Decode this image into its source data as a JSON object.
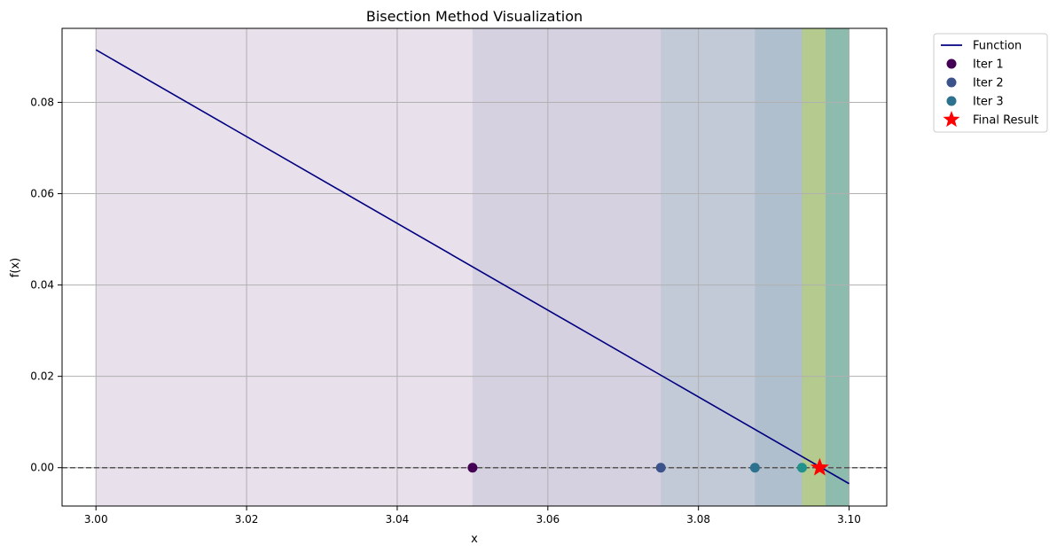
{
  "chart_data": {
    "type": "line",
    "title": "Bisection Method Visualization",
    "xlabel": "x",
    "ylabel": "f(x)",
    "xlim": [
      2.9955,
      3.105
    ],
    "ylim": [
      -0.0084,
      0.0962
    ],
    "grid": true,
    "legend_position": "outside-top-right",
    "x_ticks": [
      3.0,
      3.02,
      3.04,
      3.06,
      3.08,
      3.1
    ],
    "x_tick_labels": [
      "3.00",
      "3.02",
      "3.04",
      "3.06",
      "3.08",
      "3.10"
    ],
    "y_ticks": [
      0.0,
      0.02,
      0.04,
      0.06,
      0.08
    ],
    "y_tick_labels": [
      "0.00",
      "0.02",
      "0.04",
      "0.06",
      "0.08"
    ],
    "function": {
      "name": "Function",
      "color": "#000080",
      "x": [
        3.0,
        3.1
      ],
      "y": [
        0.0915,
        -0.0035
      ]
    },
    "zero_line": {
      "y": 0,
      "color": "#555555",
      "style": "dashed"
    },
    "intervals": [
      {
        "a": 3.0,
        "b": 3.1,
        "color": "#440154",
        "opacity": 0.12
      },
      {
        "a": 3.05,
        "b": 3.1,
        "color": "#3b528b",
        "opacity": 0.1
      },
      {
        "a": 3.075,
        "b": 3.1,
        "color": "#21918c",
        "opacity": 0.1
      },
      {
        "a": 3.0875,
        "b": 3.1,
        "color": "#2c728e",
        "opacity": 0.12
      },
      {
        "a": 3.09375,
        "b": 3.1,
        "color": "#5ec962",
        "opacity": 0.25
      },
      {
        "a": 3.09375,
        "b": 3.096875,
        "color": "#fde725",
        "opacity": 0.25
      },
      {
        "a": 3.096875,
        "b": 3.1,
        "color": "#21918c",
        "opacity": 0.12
      }
    ],
    "series": [
      {
        "name": "Iter 1",
        "color": "#440154",
        "x": [
          3.05
        ],
        "y": [
          0
        ]
      },
      {
        "name": "Iter 2",
        "color": "#3b528b",
        "x": [
          3.075
        ],
        "y": [
          0
        ]
      },
      {
        "name": "Iter 3",
        "color": "#2c728e",
        "x": [
          3.0875
        ],
        "y": [
          0
        ]
      },
      {
        "name": "",
        "color": "#21918c",
        "x": [
          3.09375
        ],
        "y": [
          0
        ]
      }
    ],
    "final_result": {
      "name": "Final Result",
      "color": "#ff0000",
      "marker": "star",
      "x": 3.0961,
      "y": 0
    },
    "legend": [
      {
        "label": "Function",
        "kind": "line",
        "color": "#000080"
      },
      {
        "label": "Iter 1",
        "kind": "dot",
        "color": "#440154"
      },
      {
        "label": "Iter 2",
        "kind": "dot",
        "color": "#3b528b"
      },
      {
        "label": "Iter 3",
        "kind": "dot",
        "color": "#2c728e"
      },
      {
        "label": "Final Result",
        "kind": "star",
        "color": "#ff0000"
      }
    ]
  }
}
